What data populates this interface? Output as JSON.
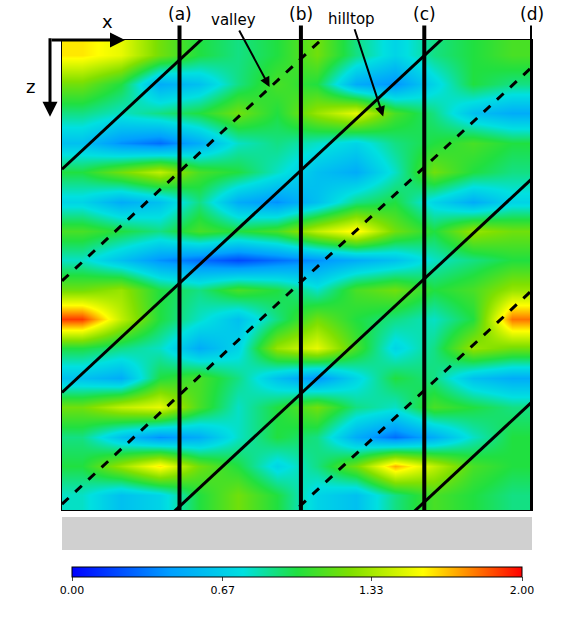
{
  "chart_data": {
    "type": "heatmap",
    "tick_labels": false,
    "x_label": "x",
    "y_label": "z",
    "x": [
      0.5,
      1.5,
      2.5,
      3.5,
      4.5,
      5.5,
      6.5,
      7.5,
      8.5,
      9.5,
      10.5,
      11.5
    ],
    "y": [
      0.5,
      1.5,
      2.5,
      3.5,
      4.5,
      5.5,
      6.5,
      7.5,
      8.5,
      9.5,
      10.5,
      11.5,
      12.5,
      13.5,
      14.5,
      15.5
    ],
    "xlim": [
      0,
      12
    ],
    "ylim": [
      16,
      0
    ],
    "cells": [
      [
        1.6,
        1.5,
        1.2,
        1.0,
        0.9,
        1.0,
        1.2,
        0.9,
        0.7,
        0.9,
        1.0,
        1.1
      ],
      [
        1.2,
        1.0,
        0.5,
        0.6,
        0.9,
        1.1,
        1.0,
        0.5,
        0.4,
        0.7,
        1.0,
        0.9
      ],
      [
        0.9,
        0.8,
        0.9,
        1.0,
        1.2,
        1.0,
        1.3,
        1.5,
        1.1,
        0.9,
        0.6,
        0.5
      ],
      [
        0.6,
        0.4,
        0.3,
        0.5,
        0.8,
        0.9,
        0.8,
        0.7,
        0.9,
        1.0,
        1.1,
        1.0
      ],
      [
        1.0,
        1.2,
        1.4,
        1.1,
        1.0,
        0.8,
        0.6,
        0.5,
        0.8,
        1.2,
        1.0,
        0.9
      ],
      [
        0.7,
        0.5,
        0.6,
        0.9,
        0.5,
        0.4,
        0.6,
        0.9,
        1.0,
        0.7,
        0.5,
        0.7
      ],
      [
        1.1,
        1.0,
        0.9,
        1.1,
        1.0,
        1.1,
        1.4,
        1.6,
        1.2,
        1.0,
        1.3,
        1.2
      ],
      [
        0.8,
        0.6,
        0.4,
        0.3,
        0.2,
        0.3,
        0.4,
        0.5,
        0.6,
        0.8,
        0.9,
        1.0
      ],
      [
        1.2,
        1.3,
        1.0,
        0.9,
        1.1,
        1.0,
        0.8,
        1.1,
        1.2,
        1.0,
        1.1,
        1.3
      ],
      [
        1.9,
        1.4,
        1.0,
        0.8,
        0.6,
        0.9,
        1.2,
        1.0,
        0.9,
        0.8,
        1.0,
        1.8
      ],
      [
        1.0,
        0.9,
        0.8,
        0.5,
        0.7,
        1.3,
        1.5,
        1.1,
        0.7,
        0.9,
        1.3,
        1.2
      ],
      [
        0.6,
        0.5,
        1.0,
        1.1,
        0.9,
        0.6,
        0.4,
        0.7,
        1.0,
        0.9,
        0.6,
        0.5
      ],
      [
        1.2,
        1.4,
        1.5,
        1.1,
        0.8,
        1.0,
        1.2,
        0.9,
        0.8,
        1.1,
        1.0,
        0.9
      ],
      [
        0.9,
        0.6,
        0.4,
        0.5,
        0.8,
        1.0,
        0.9,
        0.5,
        0.3,
        0.5,
        0.8,
        1.0
      ],
      [
        1.0,
        1.3,
        1.6,
        1.2,
        1.0,
        0.7,
        0.9,
        1.2,
        1.7,
        1.4,
        1.1,
        1.0
      ],
      [
        0.8,
        0.6,
        0.7,
        1.0,
        1.2,
        1.0,
        0.7,
        0.6,
        0.9,
        1.1,
        1.0,
        0.9
      ]
    ],
    "colorbar": {
      "range": [
        0,
        2
      ],
      "ticks": [
        {
          "value": 0,
          "label": "0.00"
        },
        {
          "value": 0.67,
          "label": "0.67"
        },
        {
          "value": 1.33,
          "label": "1.33"
        },
        {
          "value": 2,
          "label": "2.00"
        }
      ]
    },
    "sections": [
      {
        "label": "(a)",
        "x": 3
      },
      {
        "label": "(b)",
        "x": 6.1
      },
      {
        "label": "(c)",
        "x": 9.25
      },
      {
        "label": "(d)",
        "x": 12
      }
    ],
    "wave_lines": [
      {
        "line_style": "solid",
        "x": [
          0,
          12
        ],
        "y": [
          4.4,
          -10.48
        ]
      },
      {
        "line_style": "solid",
        "x": [
          0,
          12
        ],
        "y": [
          12.0,
          -2.88
        ]
      },
      {
        "line_style": "solid",
        "x": [
          0,
          12
        ],
        "y": [
          19.6,
          4.72
        ]
      },
      {
        "line_style": "solid",
        "x": [
          0,
          12
        ],
        "y": [
          27.2,
          12.32
        ]
      },
      {
        "line_style": "dash",
        "x": [
          0,
          12
        ],
        "y": [
          8.2,
          -6.68
        ]
      },
      {
        "line_style": "dash",
        "x": [
          0,
          12
        ],
        "y": [
          15.8,
          0.92
        ]
      },
      {
        "line_style": "dash",
        "x": [
          0,
          12
        ],
        "y": [
          23.4,
          8.52
        ]
      }
    ],
    "annotations": [
      {
        "text": "valley",
        "x": 5.3,
        "y": 1.6
      },
      {
        "text": "hilltop",
        "x": 8.2,
        "y": 2.6
      }
    ]
  }
}
